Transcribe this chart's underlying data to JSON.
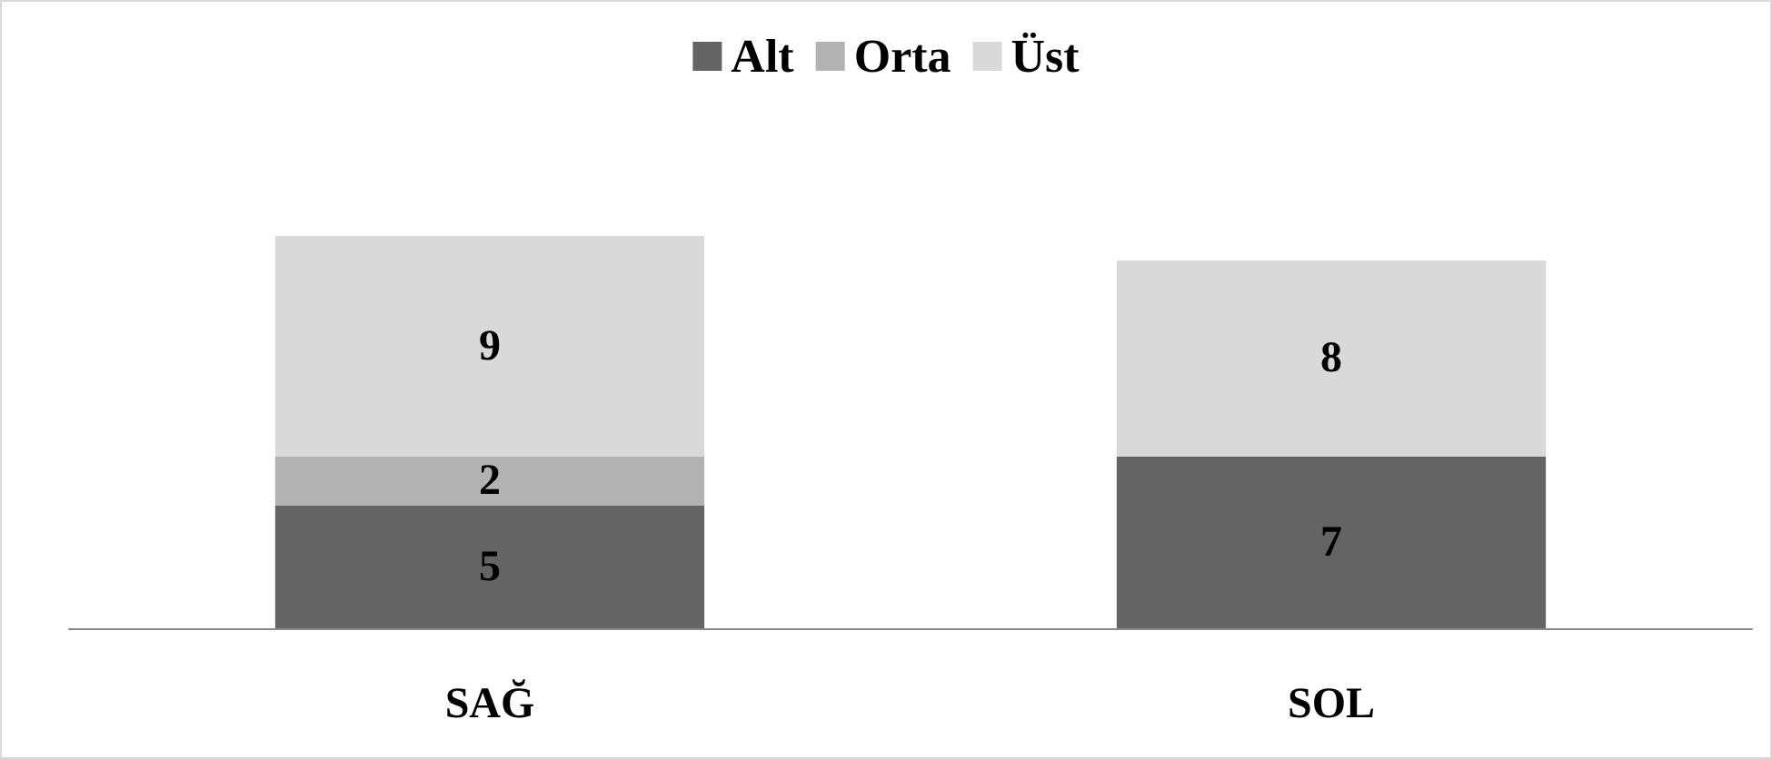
{
  "chart_data": {
    "type": "bar",
    "stacked": true,
    "categories": [
      "SAĞ",
      "SOL"
    ],
    "series": [
      {
        "name": "Alt",
        "color": "#646464",
        "values": [
          5,
          7
        ]
      },
      {
        "name": "Orta",
        "color": "#b2b2b2",
        "values": [
          2,
          null
        ]
      },
      {
        "name": "Üst",
        "color": "#d9d9d9",
        "values": [
          9,
          8
        ]
      }
    ],
    "data_labels": true,
    "legend": "top"
  }
}
